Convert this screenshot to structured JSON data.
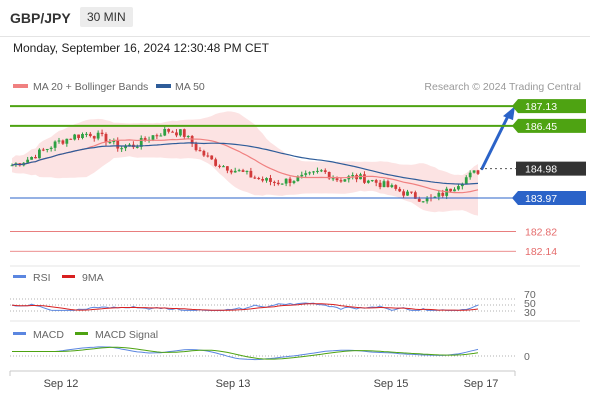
{
  "header": {
    "pair": "GBP/JPY",
    "timeframe": "30 MIN"
  },
  "timestamp": "Monday, September 16, 2024 12:30:48 PM CET",
  "legend": {
    "ma20": "MA 20 + Bollinger Bands",
    "ma50": "MA 50",
    "credit": "Research © 2024 Trading Central"
  },
  "colors": {
    "up": "#2ea043",
    "down": "#d23a3a",
    "ma20": "#f08080",
    "ma50": "#2e5c99",
    "bband": "#fbdede",
    "target": "#4ea312",
    "support": "#2b63c8",
    "pivot": "#e56b6b",
    "price": "#333333",
    "arrow": "#2b63c8",
    "rsi": "#5b86e0",
    "rsi9ma": "#d82020",
    "macd": "#5b86e0",
    "signal": "#4ea312"
  },
  "price_labels": [
    {
      "value": "187.13",
      "style": "target"
    },
    {
      "value": "186.45",
      "style": "target"
    },
    {
      "value": "184.98",
      "style": "price"
    },
    {
      "value": "183.97",
      "style": "support"
    },
    {
      "value": "182.82",
      "style": "pivot"
    },
    {
      "value": "182.14",
      "style": "pivot"
    }
  ],
  "rsi_panel": {
    "label": "RSI",
    "ma_label": "9MA",
    "levels": [
      "70",
      "50",
      "30"
    ]
  },
  "macd_panel": {
    "label": "MACD",
    "signal_label": "MACD Signal",
    "zero": "0"
  },
  "xaxis": {
    "labels": [
      "Sep 12",
      "Sep 13",
      "Sep 15",
      "Sep 17"
    ]
  },
  "chart_data": {
    "type": "candlestick",
    "instrument": "GBP/JPY",
    "interval": "30 MIN",
    "ylim": [
      181.9,
      187.5
    ],
    "levels": [
      187.13,
      186.45,
      184.98,
      183.97,
      182.82,
      182.14
    ],
    "projected_target": 187.13,
    "close_approx": [
      185.1,
      185.3,
      185.6,
      185.9,
      186.1,
      186.2,
      186.0,
      185.7,
      185.8,
      186.1,
      186.3,
      186.2,
      185.6,
      185.2,
      185.0,
      184.8,
      184.6,
      184.5,
      184.6,
      184.7,
      184.9,
      184.6,
      184.7,
      184.6,
      184.4,
      184.2,
      184.0,
      183.9,
      184.2,
      184.6,
      184.9
    ],
    "rsi_levels": [
      70,
      50,
      30
    ],
    "series": [
      {
        "name": "MA 20 + Bollinger Bands"
      },
      {
        "name": "MA 50"
      },
      {
        "name": "RSI"
      },
      {
        "name": "9MA"
      },
      {
        "name": "MACD"
      },
      {
        "name": "MACD Signal"
      }
    ]
  }
}
